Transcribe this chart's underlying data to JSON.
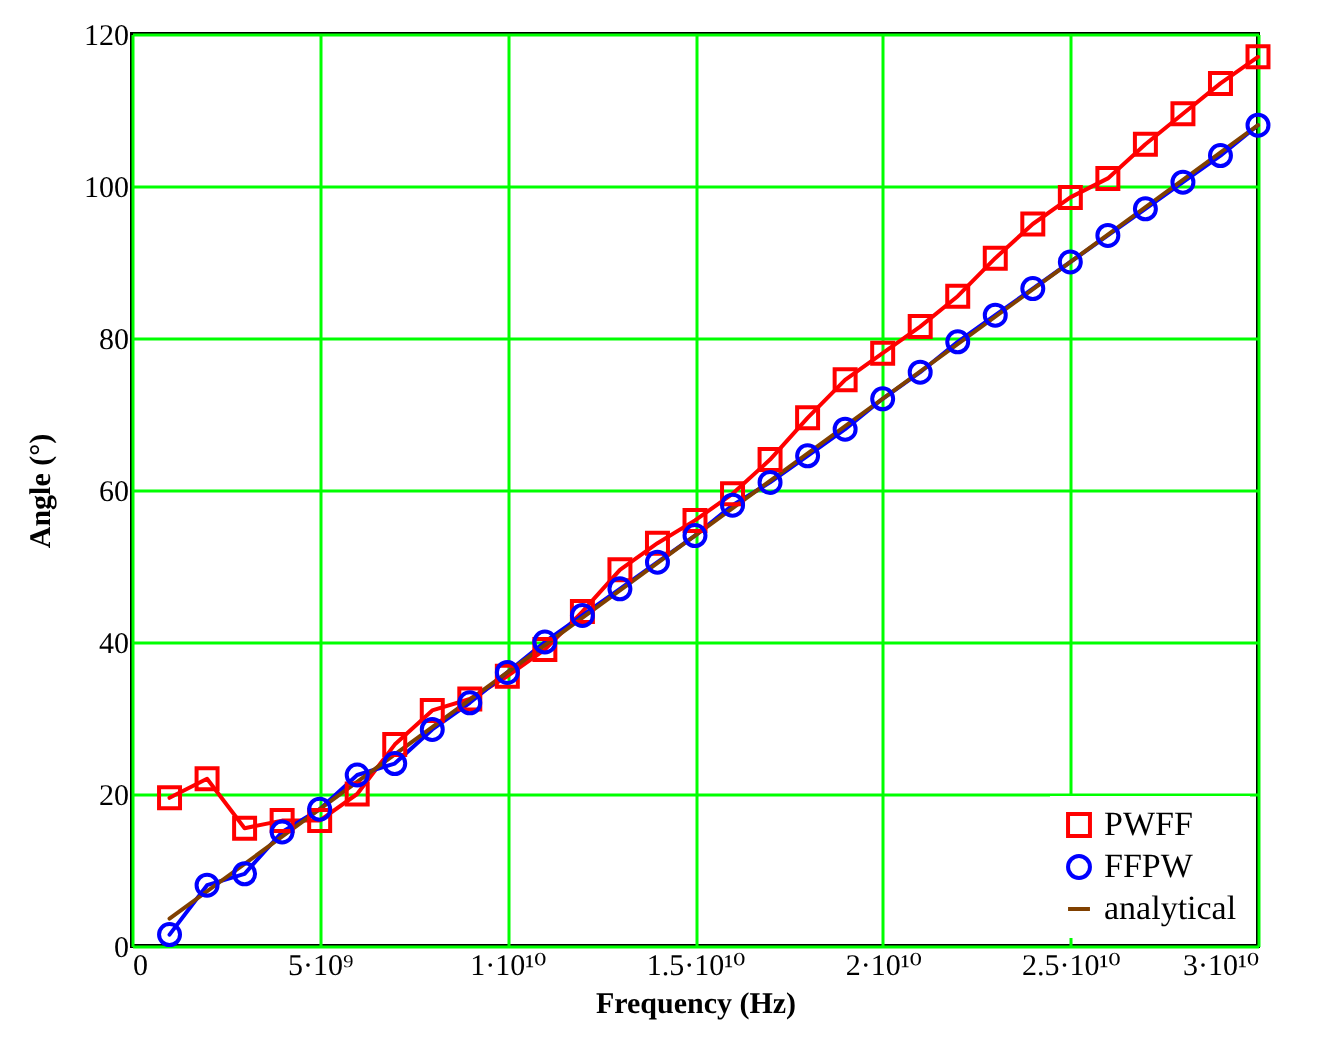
{
  "chart_data": {
    "type": "line",
    "xlabel": "Frequency (Hz)",
    "ylabel": "Angle (°)",
    "xlim": [
      0,
      30000000000
    ],
    "ylim": [
      0,
      120
    ],
    "xticks": [
      0,
      {
        "value": 5000000000,
        "label": "5·10⁹"
      },
      {
        "value": 10000000000,
        "label": "1·10¹⁰"
      },
      {
        "value": 15000000000,
        "label": "1.5·10¹⁰"
      },
      {
        "value": 20000000000,
        "label": "2·10¹⁰"
      },
      {
        "value": 25000000000,
        "label": "2.5·10¹⁰"
      },
      {
        "value": 30000000000,
        "label": "3·10¹⁰"
      }
    ],
    "yticks": [
      0,
      20,
      40,
      60,
      80,
      100,
      120
    ],
    "grid": true,
    "legend": "bottom right",
    "series": [
      {
        "name": "PWFF",
        "color": "#ff0000",
        "marker": "square",
        "x": [
          1000000000.0,
          2000000000.0,
          3000000000.0,
          4000000000.0,
          5000000000.0,
          6000000000.0,
          7000000000.0,
          8000000000.0,
          9000000000.0,
          10000000000.0,
          11000000000.0,
          12000000000.0,
          13000000000.0,
          14000000000.0,
          15000000000.0,
          16000000000.0,
          17000000000.0,
          18000000000.0,
          19000000000.0,
          20000000000.0,
          21000000000.0,
          22000000000.0,
          23000000000.0,
          24000000000.0,
          25000000000.0,
          26000000000.0,
          27000000000.0,
          28000000000.0,
          29000000000.0,
          30000000000.0
        ],
        "values": [
          19.5,
          22,
          15.5,
          16.5,
          16.5,
          20,
          26.5,
          31,
          32.5,
          35.5,
          39,
          44,
          49.5,
          53,
          56,
          59.5,
          64,
          69.5,
          74.5,
          78,
          81.5,
          85.5,
          90.5,
          95,
          98.5,
          101,
          105.5,
          109.5,
          113.5,
          117
        ]
      },
      {
        "name": "FFPW",
        "color": "#0000ff",
        "marker": "circle",
        "x": [
          1000000000.0,
          2000000000.0,
          3000000000.0,
          4000000000.0,
          5000000000.0,
          6000000000.0,
          7000000000.0,
          8000000000.0,
          9000000000.0,
          10000000000.0,
          11000000000.0,
          12000000000.0,
          13000000000.0,
          14000000000.0,
          15000000000.0,
          16000000000.0,
          17000000000.0,
          18000000000.0,
          19000000000.0,
          20000000000.0,
          21000000000.0,
          22000000000.0,
          23000000000.0,
          24000000000.0,
          25000000000.0,
          26000000000.0,
          27000000000.0,
          28000000000.0,
          29000000000.0,
          30000000000.0
        ],
        "values": [
          1.5,
          8,
          9.5,
          15,
          18,
          22.5,
          24,
          28.5,
          32,
          36,
          40,
          43.5,
          47,
          50.5,
          54,
          58,
          61,
          64.5,
          68,
          72,
          75.5,
          79.5,
          83,
          86.5,
          90,
          93.5,
          97,
          100.5,
          104,
          108
        ]
      },
      {
        "name": "analytical",
        "color": "#804000",
        "marker": "none",
        "x": [
          1000000000.0,
          30000000000.0
        ],
        "values": [
          3.6,
          108
        ]
      }
    ]
  }
}
